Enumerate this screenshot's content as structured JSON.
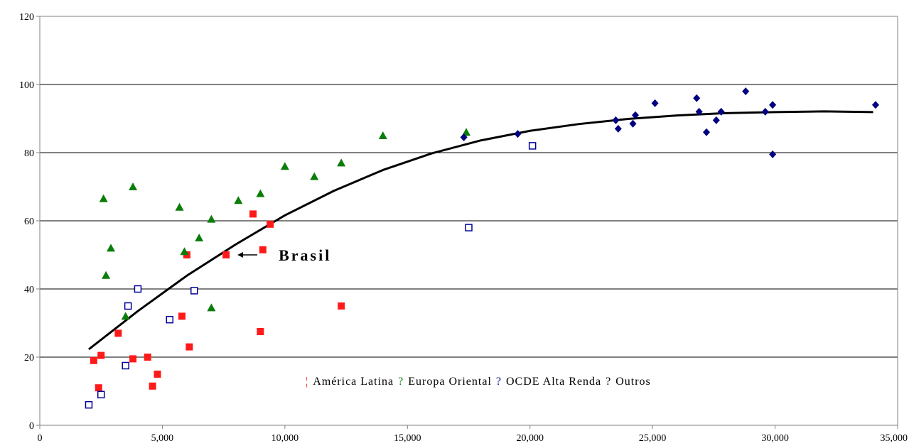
{
  "chart_data": {
    "type": "scatter",
    "title": "",
    "xlabel": "",
    "ylabel": "",
    "xlim": [
      0,
      35000
    ],
    "ylim": [
      0,
      120
    ],
    "x_ticks": [
      "0",
      "5,000",
      "10,000",
      "15,000",
      "20,000",
      "25,000",
      "30,000",
      "35,000"
    ],
    "y_ticks": [
      "0",
      "20",
      "40",
      "60",
      "80",
      "100",
      "120"
    ],
    "grid": "horizontal",
    "legend_position": "bottom-right inside plot",
    "series": [
      {
        "name": "América Latina",
        "marker": "square-filled",
        "color": "#ff1a1a",
        "points": [
          [
            2200,
            19
          ],
          [
            2400,
            11
          ],
          [
            2500,
            20.5
          ],
          [
            3200,
            27
          ],
          [
            3800,
            19.5
          ],
          [
            4400,
            20
          ],
          [
            4600,
            11.5
          ],
          [
            4800,
            15
          ],
          [
            5800,
            32
          ],
          [
            6000,
            50
          ],
          [
            6100,
            23
          ],
          [
            7600,
            50
          ],
          [
            8700,
            62
          ],
          [
            9000,
            27.5
          ],
          [
            9100,
            51.5
          ],
          [
            9400,
            59
          ],
          [
            12300,
            35
          ]
        ]
      },
      {
        "name": "Europa Oriental",
        "marker": "triangle",
        "color": "#0a7d0a",
        "points": [
          [
            2600,
            66.5
          ],
          [
            2700,
            44
          ],
          [
            2900,
            52
          ],
          [
            3500,
            32
          ],
          [
            3800,
            70
          ],
          [
            5700,
            64
          ],
          [
            5900,
            51
          ],
          [
            6500,
            55
          ],
          [
            7000,
            60.5
          ],
          [
            7000,
            34.5
          ],
          [
            8100,
            66
          ],
          [
            9000,
            68
          ],
          [
            10000,
            76
          ],
          [
            11200,
            73
          ],
          [
            12300,
            77
          ],
          [
            14000,
            85
          ],
          [
            17400,
            86
          ]
        ]
      },
      {
        "name": "OCDE Alta Renda",
        "marker": "diamond",
        "color": "#000080",
        "points": [
          [
            17300,
            84.5
          ],
          [
            19500,
            85.5
          ],
          [
            23500,
            89.5
          ],
          [
            23600,
            87
          ],
          [
            24200,
            88.5
          ],
          [
            24300,
            91
          ],
          [
            25100,
            94.5
          ],
          [
            26800,
            96
          ],
          [
            26900,
            92
          ],
          [
            27200,
            86
          ],
          [
            27600,
            89.5
          ],
          [
            27800,
            92
          ],
          [
            28800,
            98
          ],
          [
            29600,
            92
          ],
          [
            29900,
            79.5
          ],
          [
            29900,
            94
          ],
          [
            34100,
            94
          ]
        ]
      },
      {
        "name": "Outros",
        "marker": "square-open",
        "color": "#000099",
        "points": [
          [
            2000,
            6
          ],
          [
            2500,
            9
          ],
          [
            3500,
            17.5
          ],
          [
            3600,
            35
          ],
          [
            4000,
            40
          ],
          [
            5300,
            31
          ],
          [
            6300,
            39.5
          ],
          [
            17500,
            58
          ],
          [
            20100,
            82
          ]
        ]
      }
    ],
    "trendline": {
      "type": "polynomial",
      "points": [
        [
          2000,
          22.3
        ],
        [
          4000,
          33.5
        ],
        [
          6000,
          43.9
        ],
        [
          8000,
          53.1
        ],
        [
          10000,
          61.6
        ],
        [
          12000,
          68.8
        ],
        [
          14000,
          74.9
        ],
        [
          16000,
          79.8
        ],
        [
          18000,
          83.6
        ],
        [
          20000,
          86.4
        ],
        [
          22000,
          88.4
        ],
        [
          24000,
          89.9
        ],
        [
          26000,
          90.9
        ],
        [
          28000,
          91.6
        ],
        [
          30000,
          91.9
        ],
        [
          32000,
          92.1
        ],
        [
          34000,
          91.9
        ]
      ]
    },
    "annotation": {
      "text": "Brasil",
      "arrow_to": [
        7600,
        50
      ]
    },
    "legend_entries": [
      {
        "glyph": "¦",
        "label": "América Latina",
        "color": "#ff1a1a"
      },
      {
        "glyph": "?",
        "label": "Europa Oriental",
        "color": "#0a7d0a"
      },
      {
        "glyph": "?",
        "label": "OCDE Alta Renda",
        "color": "#000080"
      },
      {
        "glyph": "?",
        "label": "Outros",
        "color": "#000000"
      }
    ],
    "colors": {
      "grid": "#000000",
      "axis": "#808080",
      "trendline": "#000000"
    }
  }
}
